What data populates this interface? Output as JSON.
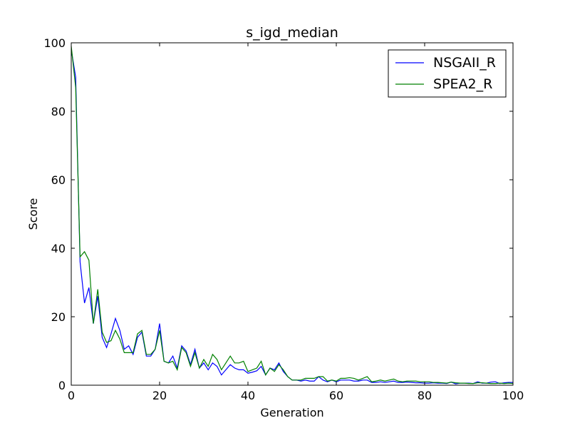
{
  "chart_data": {
    "type": "line",
    "title": "s_igd_median",
    "xlabel": "Generation",
    "ylabel": "Score",
    "xlim": [
      0,
      100
    ],
    "ylim": [
      0,
      100
    ],
    "xticks": [
      0,
      20,
      40,
      60,
      80,
      100
    ],
    "yticks": [
      0,
      20,
      40,
      60,
      80,
      100
    ],
    "grid": false,
    "legend_position": "top-right",
    "x": [
      0,
      1,
      2,
      3,
      4,
      5,
      6,
      7,
      8,
      9,
      10,
      11,
      12,
      13,
      14,
      15,
      16,
      17,
      18,
      19,
      20,
      21,
      22,
      23,
      24,
      25,
      26,
      27,
      28,
      29,
      30,
      31,
      32,
      33,
      34,
      35,
      36,
      37,
      38,
      39,
      40,
      41,
      42,
      43,
      44,
      45,
      46,
      47,
      48,
      49,
      50,
      51,
      52,
      53,
      54,
      55,
      56,
      57,
      58,
      59,
      60,
      61,
      62,
      63,
      64,
      65,
      66,
      67,
      68,
      69,
      70,
      71,
      72,
      73,
      74,
      75,
      76,
      77,
      78,
      79,
      80,
      81,
      82,
      83,
      84,
      85,
      86,
      87,
      88,
      89,
      90,
      91,
      92,
      93,
      94,
      95,
      96,
      97,
      98,
      99,
      100
    ],
    "series": [
      {
        "name": "NSGAII_R",
        "color": "#0000ff",
        "values": [
          98,
          90,
          36,
          24,
          28.5,
          18,
          26,
          14,
          11,
          15,
          19.5,
          16,
          10.5,
          11.5,
          9,
          14,
          15.5,
          8.5,
          8.5,
          10.5,
          18,
          7,
          6.5,
          8.5,
          5,
          11.5,
          10,
          6,
          10.5,
          5,
          6.5,
          4.5,
          6.5,
          5.5,
          3,
          4.5,
          6,
          5,
          4.5,
          4.5,
          3.5,
          3.8,
          4.2,
          5.5,
          3,
          5,
          4.5,
          6.5,
          4,
          2.5,
          1.5,
          1.5,
          1.2,
          1.5,
          1.2,
          1.2,
          2.5,
          1.5,
          1,
          1.5,
          1,
          1.5,
          1.5,
          1.5,
          1.2,
          1.2,
          1.5,
          1.5,
          0.8,
          0.8,
          1,
          0.8,
          1,
          1.2,
          0.8,
          0.8,
          0.9,
          0.8,
          0.7,
          0.7,
          0.6,
          0.6,
          0.7,
          0.6,
          0.6,
          0.5,
          0.9,
          0.4,
          0.6,
          0.6,
          0.6,
          0.5,
          1,
          0.6,
          0.6,
          0.9,
          1,
          0.5,
          0.7,
          0.8,
          0.8
        ]
      },
      {
        "name": "SPEA2_R",
        "color": "#008000",
        "values": [
          99,
          87,
          37.5,
          39,
          36.5,
          18,
          28,
          15.5,
          12.5,
          13,
          16,
          13.5,
          9.5,
          9.5,
          9.5,
          15,
          16,
          9,
          9,
          10.5,
          16,
          7,
          6.5,
          7,
          4.5,
          11,
          9.5,
          5.5,
          9.5,
          5,
          7.5,
          5.5,
          9,
          7.5,
          4.5,
          6.5,
          8.5,
          6.5,
          6.5,
          7,
          4,
          4.5,
          5,
          7,
          3,
          5,
          4,
          6,
          4.5,
          2.5,
          1.5,
          1.5,
          1.5,
          2,
          2,
          2,
          2.5,
          2.5,
          1.2,
          1.5,
          1.2,
          2,
          2,
          2.2,
          2,
          1.5,
          2,
          2.5,
          1,
          1.2,
          1.5,
          1.2,
          1.5,
          1.8,
          1.2,
          1,
          1.2,
          1.2,
          1.2,
          1,
          1,
          1,
          0.8,
          0.8,
          0.7,
          0.6,
          0.9,
          0.7,
          0.6,
          0.6,
          0.5,
          0.5,
          0.7,
          0.7,
          0.6,
          0.5,
          0.5,
          0.6,
          0.5,
          0.6,
          0.5
        ]
      }
    ]
  }
}
